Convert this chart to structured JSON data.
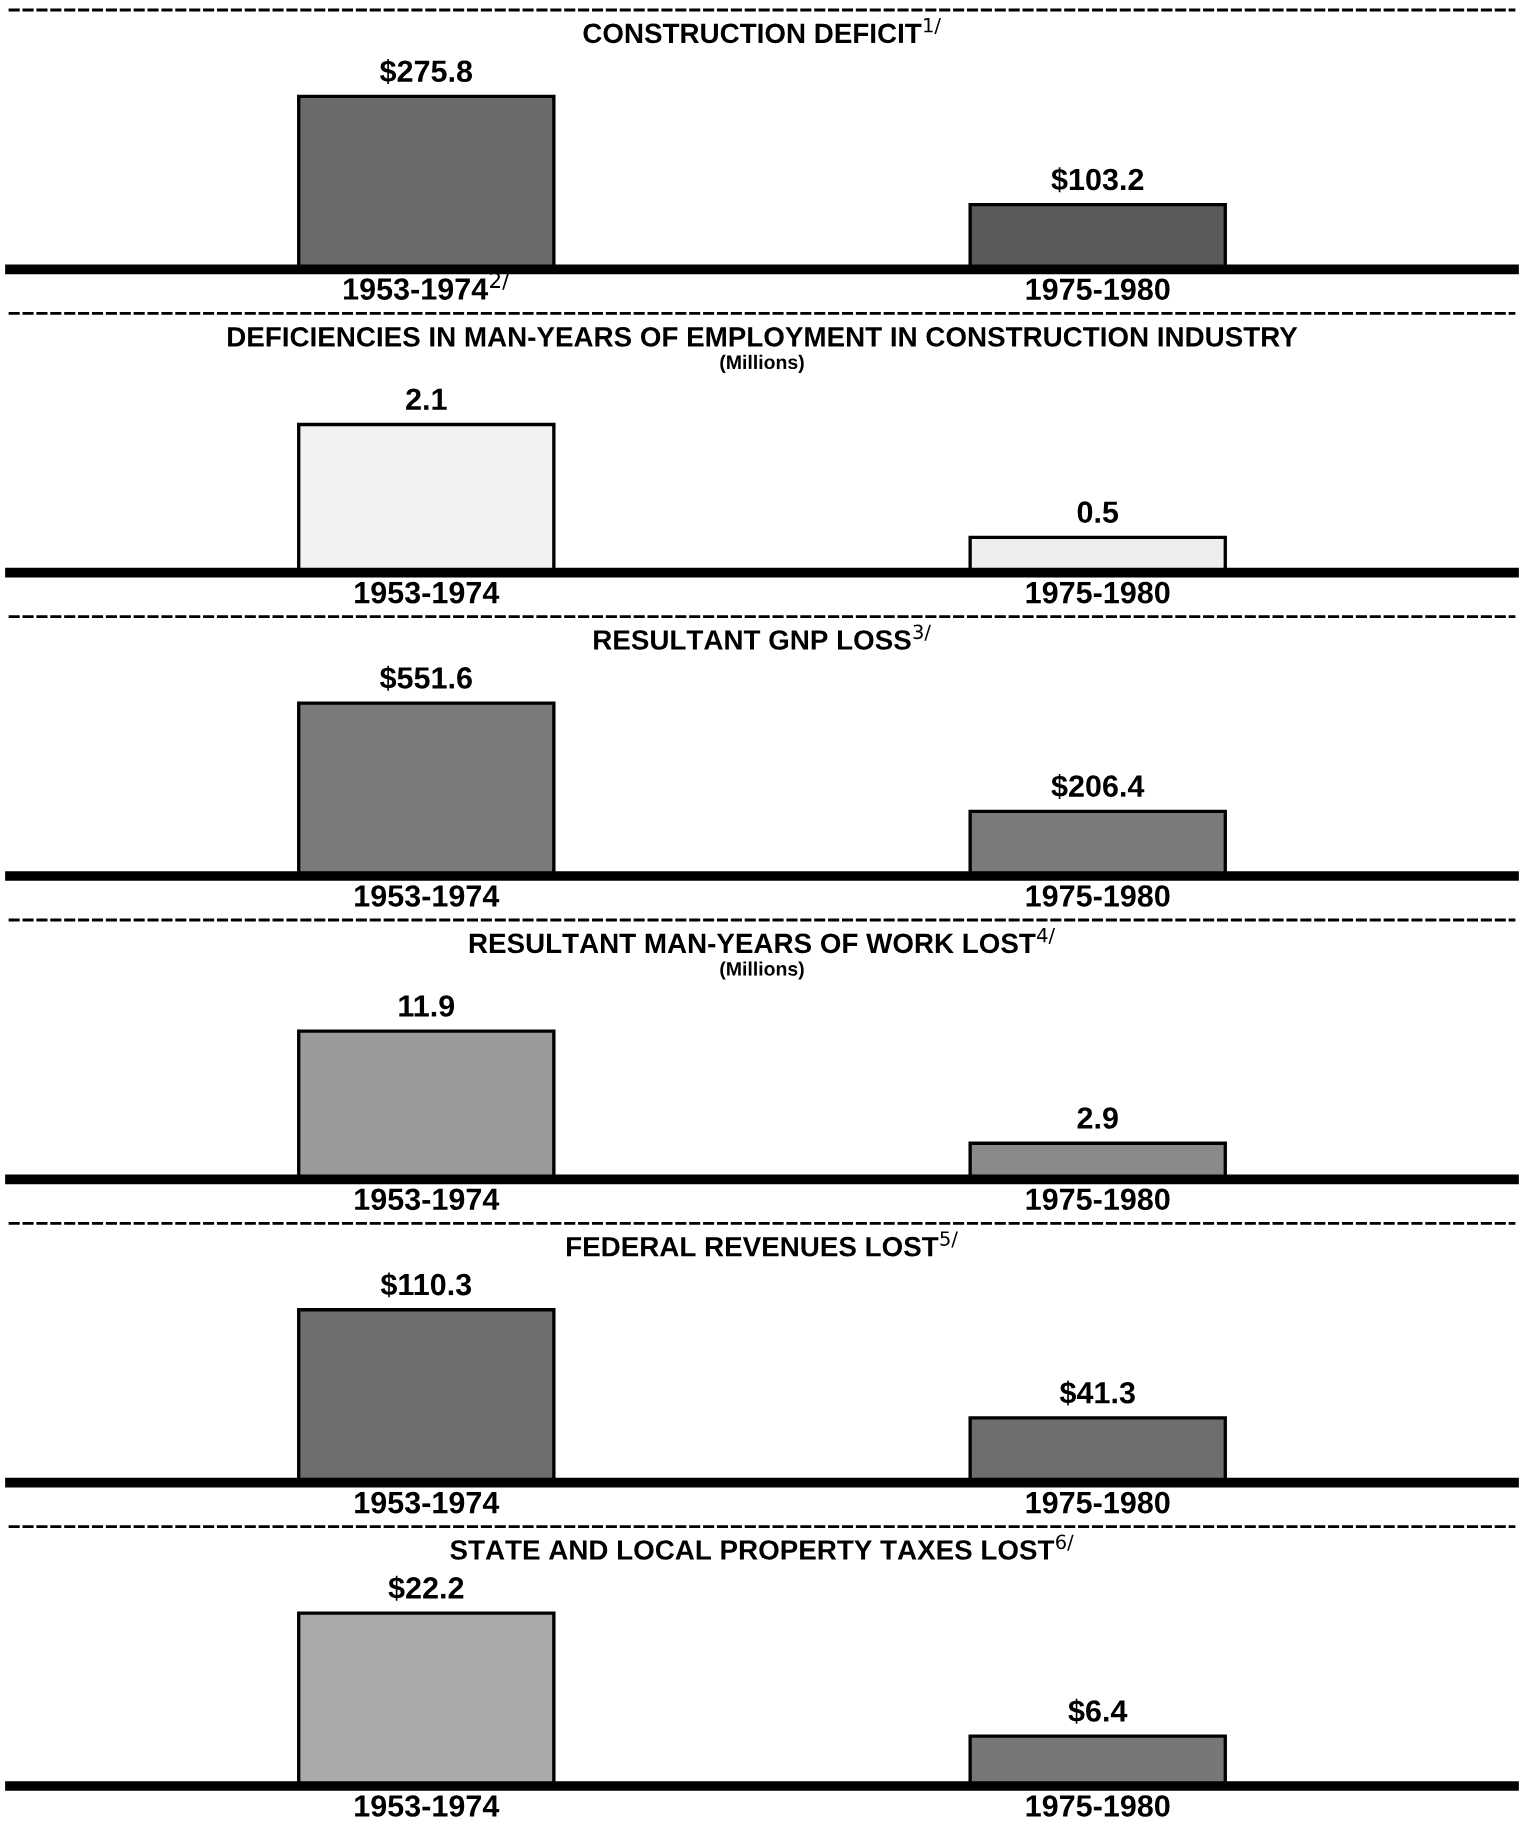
{
  "chart_data": [
    {
      "type": "bar",
      "title": "CONSTRUCTION DEFICIT$^{1/}$",
      "categories": [
        "1953-1974$^{2/}$",
        "1975-1980"
      ],
      "values": [
        275.8,
        103.2
      ],
      "value_labels": [
        "$275.8",
        "$103.2"
      ],
      "colors": [
        "#6a6a6a",
        "#5a5a5a"
      ]
    },
    {
      "type": "bar",
      "title": "DEFICIENCIES IN MAN-YEARS OF EMPLOYMENT IN CONSTRUCTION INDUSTRY",
      "subtitle": "(Millions)",
      "categories": [
        "1953-1974",
        "1975-1980"
      ],
      "values": [
        2.1,
        0.5
      ],
      "data_labels": true,
      "colors": [
        "#f2f2f2",
        "#eeeeee"
      ]
    },
    {
      "type": "bar",
      "title": "RESULTANT GNP LOSS$^{3/}$",
      "categories": [
        "1953-1974",
        "1975-1980"
      ],
      "values": [
        551.6,
        206.4
      ],
      "value_labels": [
        "$551.6",
        "$206.4"
      ],
      "colors": [
        "#7a7a7a",
        "#7a7a7a"
      ]
    },
    {
      "type": "bar",
      "title": "RESULTANT MAN-YEARS OF WORK LOST$^{4/}$",
      "subtitle": "(Millions)",
      "categories": [
        "1953-1974",
        "1975-1980"
      ],
      "values": [
        11.9,
        2.9
      ],
      "data_labels": true,
      "colors": [
        "#9a9a9a",
        "#8a8a8a"
      ]
    },
    {
      "type": "bar",
      "title": "FEDERAL REVENUES LOST$^{5/}$",
      "categories": [
        "1953-1974",
        "1975-1980"
      ],
      "values": [
        110.3,
        41.3
      ],
      "value_labels": [
        "$110.3",
        "$41.3"
      ],
      "colors": [
        "#6e6e6e",
        "#6e6e6e"
      ]
    },
    {
      "type": "bar",
      "title": "STATE AND LOCAL PROPERTY TAXES LOST$^{6/}$",
      "categories": [
        "1953-1974",
        "1975-1980"
      ],
      "values": [
        22.2,
        6.4
      ],
      "value_labels": [
        "$22.2",
        "$6.4"
      ],
      "colors": [
        "#aaaaaa",
        "#777777"
      ]
    }
  ]
}
